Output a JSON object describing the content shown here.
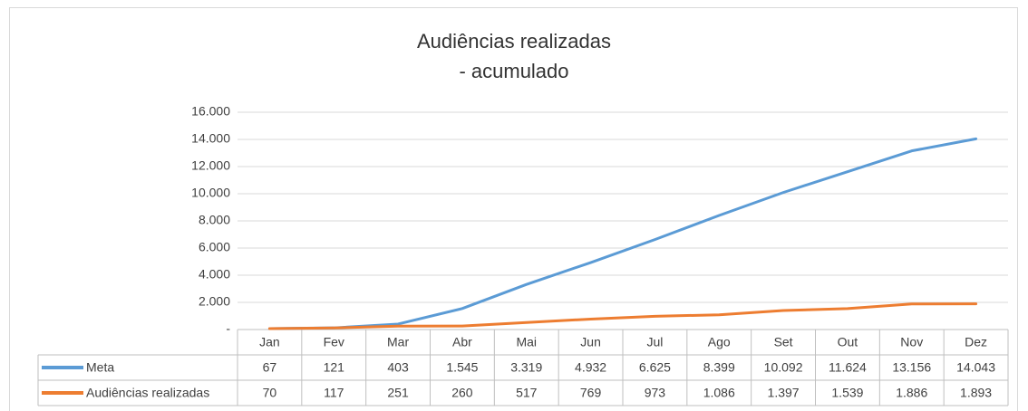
{
  "chart_data": {
    "type": "line",
    "title": [
      "Audiências realizadas",
      "- acumulado"
    ],
    "categories": [
      "Jan",
      "Fev",
      "Mar",
      "Abr",
      "Mai",
      "Jun",
      "Jul",
      "Ago",
      "Set",
      "Out",
      "Nov",
      "Dez"
    ],
    "series": [
      {
        "name": "Meta",
        "color": "#5b9bd5",
        "values": [
          67,
          121,
          403,
          1545,
          3319,
          4932,
          6625,
          8399,
          10092,
          11624,
          13156,
          14043
        ],
        "value_labels": [
          "67",
          "121",
          "403",
          "1.545",
          "3.319",
          "4.932",
          "6.625",
          "8.399",
          "10.092",
          "11.624",
          "13.156",
          "14.043"
        ]
      },
      {
        "name": "Audiências realizadas",
        "color": "#ed7d31",
        "values": [
          70,
          117,
          251,
          260,
          517,
          769,
          973,
          1086,
          1397,
          1539,
          1886,
          1893
        ],
        "value_labels": [
          "70",
          "117",
          "251",
          "260",
          "517",
          "769",
          "973",
          "1.086",
          "1.397",
          "1.539",
          "1.886",
          "1.893"
        ]
      }
    ],
    "ylim": [
      0,
      16000
    ],
    "yticks": [
      {
        "value": 0,
        "label": "-"
      },
      {
        "value": 2000,
        "label": "2.000"
      },
      {
        "value": 4000,
        "label": "4.000"
      },
      {
        "value": 6000,
        "label": "6.000"
      },
      {
        "value": 8000,
        "label": "8.000"
      },
      {
        "value": 10000,
        "label": "10.000"
      },
      {
        "value": 12000,
        "label": "12.000"
      },
      {
        "value": 14000,
        "label": "14.000"
      },
      {
        "value": 16000,
        "label": "16.000"
      }
    ],
    "grid": true
  }
}
